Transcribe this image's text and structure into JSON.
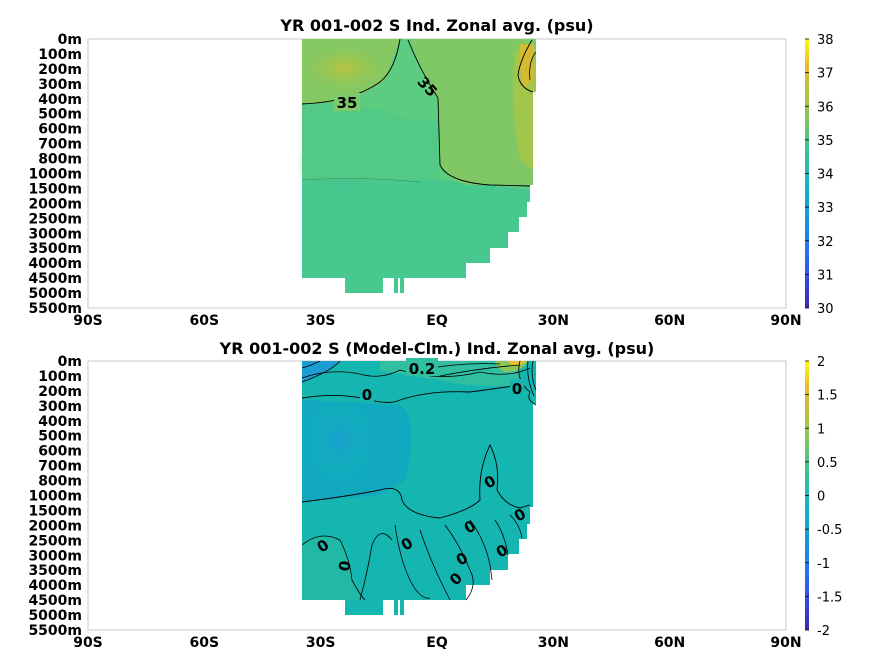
{
  "chart_data": [
    {
      "type": "heatmap",
      "title": "YR 001-002 S Ind. Zonal avg. (psu)",
      "x_ticks": [
        "90S",
        "60S",
        "30S",
        "EQ",
        "30N",
        "60N",
        "90N"
      ],
      "x_tick_values": [
        -90,
        -60,
        -30,
        0,
        30,
        60,
        90
      ],
      "y_ticks": [
        "0m",
        "100m",
        "200m",
        "300m",
        "400m",
        "500m",
        "600m",
        "700m",
        "800m",
        "1000m",
        "1500m",
        "2000m",
        "2500m",
        "3000m",
        "3500m",
        "4000m",
        "4500m",
        "5000m",
        "5500m"
      ],
      "colorbar": {
        "min": 30,
        "max": 38,
        "ticks": [
          "38",
          "37",
          "36",
          "35",
          "34",
          "33",
          "32",
          "31",
          "30"
        ]
      },
      "contour_labels": [
        "35",
        "35"
      ],
      "colors": {
        "high": "#c8b82e",
        "mid": "#7ec96a",
        "base": "#46c88e",
        "low": "#2a7fd8"
      }
    },
    {
      "type": "heatmap",
      "title": "YR 001-002 S (Model-Clm.) Ind. Zonal avg. (psu)",
      "x_ticks": [
        "90S",
        "60S",
        "30S",
        "EQ",
        "30N",
        "60N",
        "90N"
      ],
      "x_tick_values": [
        -90,
        -60,
        -30,
        0,
        30,
        60,
        90
      ],
      "y_ticks": [
        "0m",
        "100m",
        "200m",
        "300m",
        "400m",
        "500m",
        "600m",
        "700m",
        "800m",
        "1000m",
        "1500m",
        "2000m",
        "2500m",
        "3000m",
        "3500m",
        "4000m",
        "4500m",
        "5000m",
        "5500m"
      ],
      "colorbar": {
        "min": -2,
        "max": 2,
        "ticks": [
          "2",
          "1.5",
          "1",
          "0.5",
          "0",
          "-0.5",
          "-1",
          "-1.5",
          "-2"
        ]
      },
      "contour_labels": [
        "0.2",
        "0",
        "0",
        "0",
        "0",
        "0",
        "0",
        "0",
        "0",
        "0",
        "0"
      ],
      "colors": {
        "base": "#15b6b0",
        "neg": "#1aa2c8",
        "pos": "#36c090"
      }
    }
  ]
}
